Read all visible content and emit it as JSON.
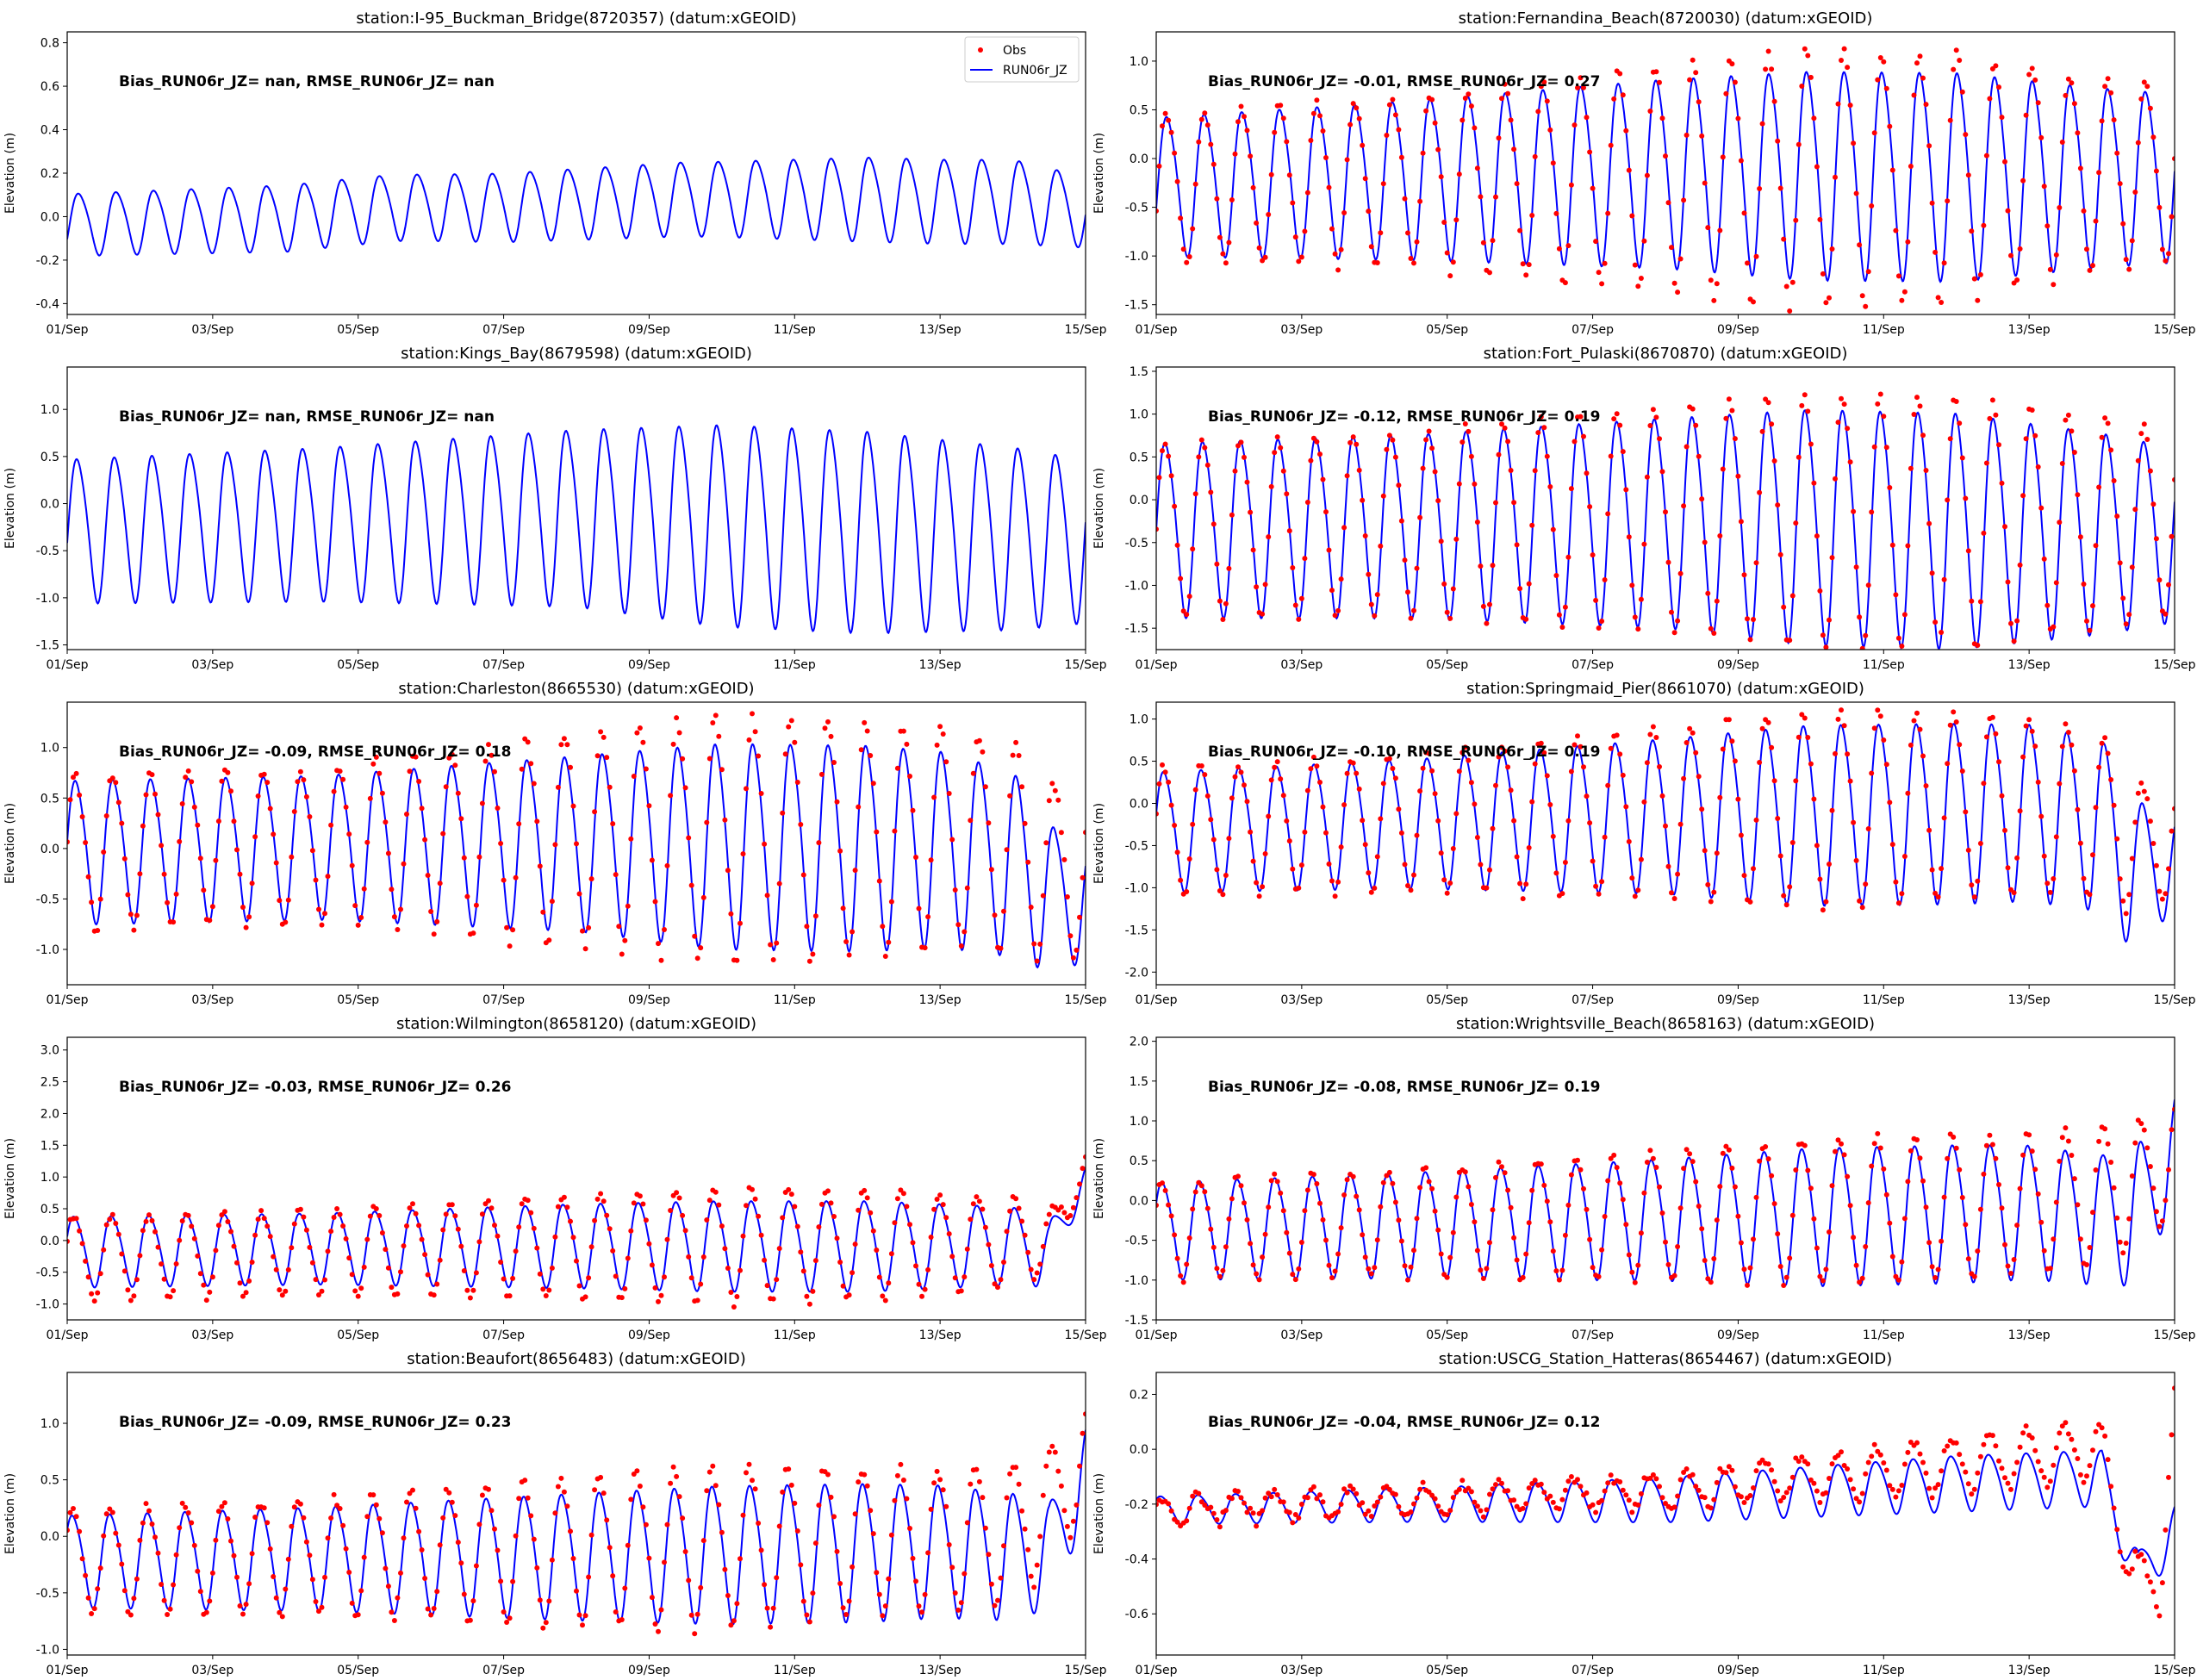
{
  "figure": {
    "x_ticks": [
      "01/Sep",
      "03/Sep",
      "05/Sep",
      "07/Sep",
      "09/Sep",
      "11/Sep",
      "13/Sep",
      "15/Sep"
    ],
    "x_range_days": [
      0,
      14
    ],
    "ylabel": "Elevation (m)",
    "obs_color": "#ff0000",
    "model_color": "#0000ff",
    "legend": {
      "obs_label": "Obs",
      "model_label": "RUN06r_JZ",
      "placement": "top-right"
    }
  },
  "chart_data": [
    {
      "type": "line",
      "title": "station:I-95_Buckman_Bridge(8720357) (datum:xGEOID)",
      "stats": "Bias_RUN06r_JZ=   nan, RMSE_RUN06r_JZ=   nan",
      "ylim": [
        -0.45,
        0.85
      ],
      "yticks": [
        -0.4,
        -0.2,
        0.0,
        0.2,
        0.4,
        0.6,
        0.8
      ],
      "has_obs": false,
      "legend": true,
      "model": {
        "base": [
          [
            0,
            -0.03
          ],
          [
            3,
            0.0
          ],
          [
            4.5,
            0.05
          ],
          [
            6,
            0.05
          ],
          [
            8.5,
            0.09
          ],
          [
            11,
            0.09
          ],
          [
            12,
            0.08
          ],
          [
            13,
            0.08
          ],
          [
            14,
            0.03
          ]
        ],
        "amp": [
          [
            0,
            0.14
          ],
          [
            3,
            0.15
          ],
          [
            5,
            0.15
          ],
          [
            7,
            0.16
          ],
          [
            9,
            0.17
          ],
          [
            11,
            0.19
          ],
          [
            13,
            0.19
          ],
          [
            14,
            0.16
          ]
        ],
        "trend": 0.0
      }
    },
    {
      "type": "line",
      "title": "station:Fernandina_Beach(8720030) (datum:xGEOID)",
      "stats": "Bias_RUN06r_JZ= -0.01, RMSE_RUN06r_JZ=  0.27",
      "ylim": [
        -1.6,
        1.3
      ],
      "yticks": [
        -1.5,
        -1.0,
        -0.5,
        0.0,
        0.5,
        1.0
      ],
      "has_obs": true,
      "legend": false,
      "model": {
        "base": [
          [
            0,
            -0.25
          ],
          [
            7,
            -0.1
          ],
          [
            14,
            -0.15
          ]
        ],
        "amp": [
          [
            0,
            0.7
          ],
          [
            3.5,
            0.8
          ],
          [
            7,
            0.95
          ],
          [
            9,
            1.05
          ],
          [
            11,
            1.05
          ],
          [
            13,
            0.9
          ],
          [
            14,
            0.85
          ]
        ],
        "trend": 0.0
      },
      "obs": {
        "base": [
          [
            0,
            -0.25
          ],
          [
            7,
            -0.15
          ],
          [
            14,
            -0.1
          ]
        ],
        "amp": [
          [
            0,
            0.75
          ],
          [
            3.5,
            0.85
          ],
          [
            7,
            1.15
          ],
          [
            9,
            1.3
          ],
          [
            11,
            1.25
          ],
          [
            13,
            0.95
          ],
          [
            14,
            0.9
          ]
        ],
        "trend": 0.0,
        "jitter": 0.05
      }
    },
    {
      "type": "line",
      "title": "station:Kings_Bay(8679598) (datum:xGEOID)",
      "stats": "Bias_RUN06r_JZ=   nan, RMSE_RUN06r_JZ=   nan",
      "ylim": [
        -1.55,
        1.45
      ],
      "yticks": [
        -1.5,
        -1.0,
        -0.5,
        0.0,
        0.5,
        1.0
      ],
      "has_obs": false,
      "legend": false,
      "model": {
        "base": [
          [
            0,
            -0.25
          ],
          [
            7,
            -0.1
          ],
          [
            14,
            -0.35
          ]
        ],
        "amp": [
          [
            0,
            0.75
          ],
          [
            3.5,
            0.8
          ],
          [
            7,
            0.92
          ],
          [
            9,
            1.05
          ],
          [
            11,
            1.05
          ],
          [
            13,
            0.95
          ],
          [
            14,
            0.85
          ]
        ],
        "trend": 0.0
      }
    },
    {
      "type": "line",
      "title": "station:Fort_Pulaski(8670870) (datum:xGEOID)",
      "stats": "Bias_RUN06r_JZ= -0.12, RMSE_RUN06r_JZ=  0.19",
      "ylim": [
        -1.75,
        1.55
      ],
      "yticks": [
        -1.5,
        -1.0,
        -0.5,
        0.0,
        0.5,
        1.0,
        1.5
      ],
      "has_obs": true,
      "legend": false,
      "model": {
        "base": [
          [
            0,
            -0.3
          ],
          [
            7,
            -0.2
          ],
          [
            14,
            -0.35
          ]
        ],
        "amp": [
          [
            0,
            1.0
          ],
          [
            3.5,
            1.05
          ],
          [
            7,
            1.2
          ],
          [
            9,
            1.35
          ],
          [
            11,
            1.35
          ],
          [
            13,
            1.15
          ],
          [
            14,
            1.0
          ]
        ],
        "trend": 0.0
      },
      "obs": {
        "base": [
          [
            0,
            -0.3
          ],
          [
            7,
            -0.15
          ],
          [
            14,
            -0.2
          ]
        ],
        "amp": [
          [
            0,
            1.0
          ],
          [
            3.5,
            1.05
          ],
          [
            7,
            1.3
          ],
          [
            9,
            1.45
          ],
          [
            11,
            1.45
          ],
          [
            13,
            1.2
          ],
          [
            14,
            1.05
          ]
        ],
        "trend": 0.0,
        "jitter": 0.04
      }
    },
    {
      "type": "line",
      "title": "station:Charleston(8665530) (datum:xGEOID)",
      "stats": "Bias_RUN06r_JZ= -0.09, RMSE_RUN06r_JZ=  0.18",
      "ylim": [
        -1.35,
        1.45
      ],
      "yticks": [
        -1.0,
        -0.5,
        0.0,
        0.5,
        1.0
      ],
      "has_obs": true,
      "legend": false,
      "model": {
        "base": [
          [
            0,
            0.0
          ],
          [
            7,
            0.1
          ],
          [
            12,
            0.05
          ],
          [
            13,
            -0.1
          ],
          [
            13.6,
            -0.5
          ],
          [
            14,
            -0.45
          ]
        ],
        "amp": [
          [
            0,
            0.7
          ],
          [
            3.5,
            0.7
          ],
          [
            7,
            0.85
          ],
          [
            9,
            1.0
          ],
          [
            11,
            1.0
          ],
          [
            13,
            0.9
          ],
          [
            13.6,
            0.7
          ],
          [
            14,
            0.6
          ]
        ],
        "trend": 0.0
      },
      "obs": {
        "base": [
          [
            0,
            0.0
          ],
          [
            7,
            0.15
          ],
          [
            12,
            0.15
          ],
          [
            13,
            0.1
          ],
          [
            13.6,
            -0.2
          ],
          [
            14,
            -0.2
          ]
        ],
        "amp": [
          [
            0,
            0.75
          ],
          [
            3.5,
            0.75
          ],
          [
            7,
            1.05
          ],
          [
            9,
            1.2
          ],
          [
            11,
            1.15
          ],
          [
            13,
            1.0
          ],
          [
            14,
            0.8
          ]
        ],
        "trend": 0.0,
        "jitter": 0.05
      }
    },
    {
      "type": "line",
      "title": "station:Springmaid_Pier(8661070) (datum:xGEOID)",
      "stats": "Bias_RUN06r_JZ= -0.10, RMSE_RUN06r_JZ=  0.19",
      "ylim": [
        -2.15,
        1.2
      ],
      "yticks": [
        -2.0,
        -1.5,
        -1.0,
        -0.5,
        0.0,
        0.5,
        1.0
      ],
      "has_obs": true,
      "legend": false,
      "model": {
        "base": [
          [
            0,
            -0.3
          ],
          [
            7,
            -0.1
          ],
          [
            12,
            -0.05
          ],
          [
            13,
            -0.2
          ],
          [
            13.5,
            -0.85
          ],
          [
            14,
            -0.6
          ]
        ],
        "amp": [
          [
            0,
            0.7
          ],
          [
            3.5,
            0.75
          ],
          [
            7,
            0.9
          ],
          [
            9,
            1.05
          ],
          [
            11,
            1.05
          ],
          [
            13,
            1.0
          ],
          [
            13.5,
            0.9
          ],
          [
            14,
            0.55
          ]
        ],
        "trend": 0.0
      },
      "obs": {
        "base": [
          [
            0,
            -0.3
          ],
          [
            7,
            -0.05
          ],
          [
            12,
            0.05
          ],
          [
            13,
            -0.1
          ],
          [
            13.5,
            -0.5
          ],
          [
            14,
            -0.4
          ]
        ],
        "amp": [
          [
            0,
            0.75
          ],
          [
            3.5,
            0.8
          ],
          [
            7,
            1.0
          ],
          [
            9,
            1.15
          ],
          [
            11,
            1.1
          ],
          [
            13,
            0.95
          ],
          [
            14,
            0.6
          ]
        ],
        "trend": 0.0,
        "jitter": 0.05
      }
    },
    {
      "type": "line",
      "title": "station:Wilmington(8658120) (datum:xGEOID)",
      "stats": "Bias_RUN06r_JZ= -0.03, RMSE_RUN06r_JZ=  0.26",
      "ylim": [
        -1.25,
        3.2
      ],
      "yticks": [
        -1.0,
        -0.5,
        0.0,
        0.5,
        1.0,
        1.5,
        2.0,
        2.5,
        3.0
      ],
      "has_obs": true,
      "legend": false,
      "model": {
        "base": [
          [
            0,
            -0.15
          ],
          [
            7,
            -0.05
          ],
          [
            13,
            -0.05
          ],
          [
            13.5,
            -0.2
          ],
          [
            14,
            1.05
          ]
        ],
        "amp": [
          [
            0,
            0.55
          ],
          [
            3.5,
            0.55
          ],
          [
            7,
            0.65
          ],
          [
            9,
            0.7
          ],
          [
            11,
            0.7
          ],
          [
            13,
            0.6
          ],
          [
            13.5,
            0.5
          ],
          [
            14,
            0.15
          ]
        ],
        "trend": 0.0
      },
      "obs": {
        "base": [
          [
            0,
            -0.25
          ],
          [
            7,
            -0.05
          ],
          [
            13,
            0.0
          ],
          [
            13.5,
            0.0
          ],
          [
            14,
            1.2
          ]
        ],
        "amp": [
          [
            0,
            0.65
          ],
          [
            3.5,
            0.65
          ],
          [
            7,
            0.8
          ],
          [
            9,
            0.9
          ],
          [
            11,
            0.85
          ],
          [
            13,
            0.7
          ],
          [
            14,
            0.2
          ]
        ],
        "trend": 0.0,
        "jitter": 0.05
      }
    },
    {
      "type": "line",
      "title": "station:Wrightsville_Beach(8658163) (datum:xGEOID)",
      "stats": "Bias_RUN06r_JZ= -0.08, RMSE_RUN06r_JZ=  0.19",
      "ylim": [
        -1.5,
        2.05
      ],
      "yticks": [
        -1.5,
        -1.0,
        -0.5,
        0.0,
        0.5,
        1.0,
        1.5,
        2.0
      ],
      "has_obs": true,
      "legend": false,
      "model": {
        "base": [
          [
            0,
            -0.35
          ],
          [
            7,
            -0.2
          ],
          [
            12,
            -0.1
          ],
          [
            13,
            -0.2
          ],
          [
            13.6,
            -0.1
          ],
          [
            14,
            0.8
          ]
        ],
        "amp": [
          [
            0,
            0.6
          ],
          [
            3.5,
            0.65
          ],
          [
            7,
            0.75
          ],
          [
            9,
            0.85
          ],
          [
            11,
            0.85
          ],
          [
            13,
            0.8
          ],
          [
            13.6,
            0.9
          ],
          [
            14,
            0.6
          ]
        ],
        "trend": 0.0
      },
      "obs": {
        "base": [
          [
            0,
            -0.35
          ],
          [
            7,
            -0.15
          ],
          [
            12,
            0.0
          ],
          [
            13,
            0.1
          ],
          [
            13.6,
            0.3
          ],
          [
            14,
            0.6
          ]
        ],
        "amp": [
          [
            0,
            0.6
          ],
          [
            3.5,
            0.65
          ],
          [
            7,
            0.8
          ],
          [
            9,
            0.9
          ],
          [
            11,
            0.9
          ],
          [
            13,
            0.85
          ],
          [
            14,
            0.7
          ]
        ],
        "trend": 0.0,
        "jitter": 0.05
      }
    },
    {
      "type": "line",
      "title": "station:Beaufort(8656483) (datum:xGEOID)",
      "stats": "Bias_RUN06r_JZ= -0.09, RMSE_RUN06r_JZ=  0.23",
      "ylim": [
        -1.05,
        1.45
      ],
      "yticks": [
        -1.0,
        -0.5,
        0.0,
        0.5,
        1.0
      ],
      "has_obs": true,
      "legend": false,
      "model": {
        "base": [
          [
            0,
            -0.2
          ],
          [
            7,
            -0.15
          ],
          [
            12,
            -0.1
          ],
          [
            13,
            -0.15
          ],
          [
            13.5,
            -0.15
          ],
          [
            14,
            0.6
          ]
        ],
        "amp": [
          [
            0,
            0.4
          ],
          [
            3.5,
            0.45
          ],
          [
            7,
            0.55
          ],
          [
            9,
            0.6
          ],
          [
            11,
            0.6
          ],
          [
            13,
            0.55
          ],
          [
            13.5,
            0.45
          ],
          [
            14,
            0.4
          ]
        ],
        "trend": 0.0
      },
      "obs": {
        "base": [
          [
            0,
            -0.2
          ],
          [
            7,
            -0.1
          ],
          [
            12,
            0.0
          ],
          [
            13,
            0.05
          ],
          [
            13.5,
            0.3
          ],
          [
            14,
            0.7
          ]
        ],
        "amp": [
          [
            0,
            0.45
          ],
          [
            3.5,
            0.5
          ],
          [
            7,
            0.65
          ],
          [
            9,
            0.7
          ],
          [
            11,
            0.65
          ],
          [
            13,
            0.6
          ],
          [
            14,
            0.45
          ]
        ],
        "trend": 0.0,
        "jitter": 0.05
      }
    },
    {
      "type": "line",
      "title": "station:USCG_Station_Hatteras(8654467) (datum:xGEOID)",
      "stats": "Bias_RUN06r_JZ= -0.04, RMSE_RUN06r_JZ=  0.12",
      "ylim": [
        -0.75,
        0.28
      ],
      "yticks": [
        -0.6,
        -0.4,
        -0.2,
        0.0,
        0.2
      ],
      "has_obs": true,
      "legend": false,
      "model": {
        "base": [
          [
            0,
            -0.22
          ],
          [
            7,
            -0.18
          ],
          [
            11,
            -0.12
          ],
          [
            13,
            -0.1
          ],
          [
            13.5,
            -0.45
          ],
          [
            14,
            -0.3
          ]
        ],
        "amp": [
          [
            0,
            0.05
          ],
          [
            3.5,
            0.06
          ],
          [
            7,
            0.08
          ],
          [
            9,
            0.09
          ],
          [
            11,
            0.1
          ],
          [
            13,
            0.1
          ],
          [
            13.5,
            0.08
          ],
          [
            14,
            0.1
          ]
        ],
        "trend": 0.0
      },
      "obs": {
        "base": [
          [
            0,
            -0.22
          ],
          [
            7,
            -0.15
          ],
          [
            11,
            -0.05
          ],
          [
            13,
            0.0
          ],
          [
            13.4,
            -0.45
          ],
          [
            13.8,
            -0.5
          ],
          [
            14,
            0.15
          ]
        ],
        "amp": [
          [
            0,
            0.05
          ],
          [
            3.5,
            0.05
          ],
          [
            7,
            0.06
          ],
          [
            9,
            0.08
          ],
          [
            11,
            0.1
          ],
          [
            13,
            0.1
          ],
          [
            14,
            0.08
          ]
        ],
        "trend": 0.0,
        "jitter": 0.02
      }
    }
  ]
}
